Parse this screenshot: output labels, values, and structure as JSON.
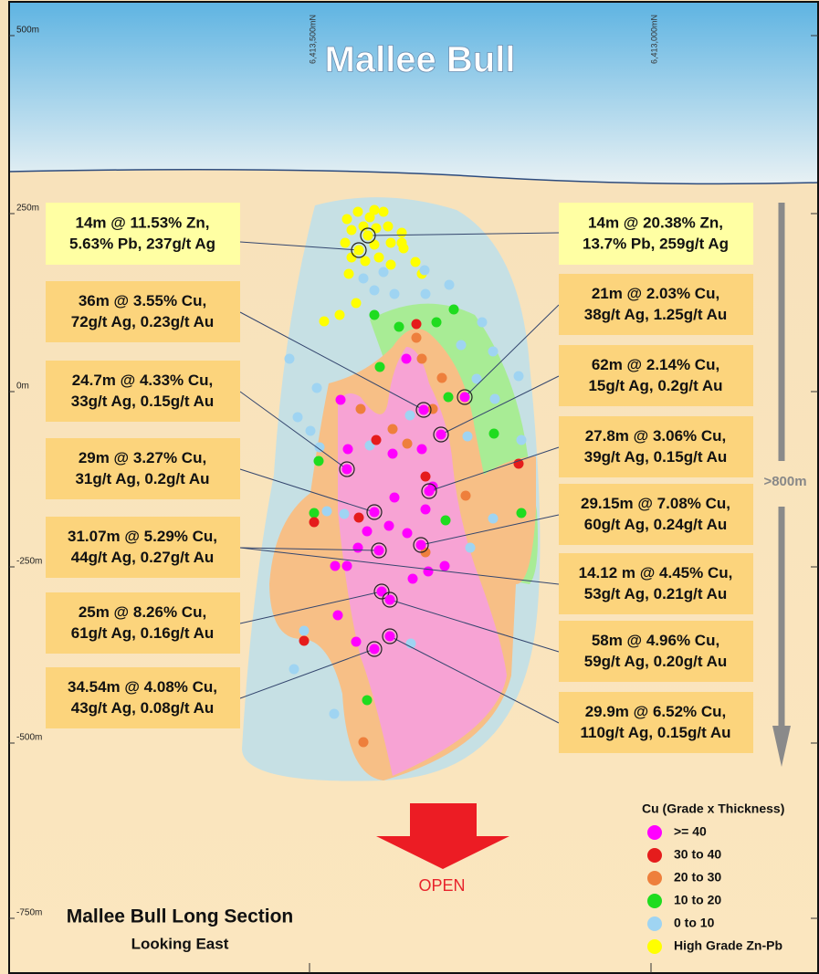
{
  "title": "Mallee Bull",
  "elevations": [
    "500m",
    "250m",
    "0m",
    "-250m",
    "-500m",
    "-750m"
  ],
  "northings": [
    "6,413,500mN",
    "6,413,000mN"
  ],
  "zn_intercepts": {
    "left": [
      "14m @ 11.53% Zn,",
      "5.63% Pb, 237g/t Ag"
    ],
    "right": [
      "14m @ 20.38% Zn,",
      "13.7% Pb, 259g/t Ag"
    ]
  },
  "cu_intercepts_left": [
    [
      "36m @ 3.55% Cu,",
      "72g/t Ag, 0.23g/t Au"
    ],
    [
      "24.7m @ 4.33% Cu,",
      "33g/t Ag, 0.15g/t Au"
    ],
    [
      "29m @ 3.27% Cu,",
      "31g/t Ag, 0.2g/t Au"
    ],
    [
      "31.07m @ 5.29% Cu,",
      "44g/t Ag, 0.27g/t Au"
    ],
    [
      "25m @ 8.26% Cu,",
      "61g/t Ag, 0.16g/t Au"
    ],
    [
      "34.54m @ 4.08% Cu,",
      "43g/t Ag, 0.08g/t Au"
    ]
  ],
  "cu_intercepts_right": [
    [
      "21m @ 2.03% Cu,",
      "38g/t Ag, 1.25g/t Au"
    ],
    [
      "62m @ 2.14% Cu,",
      "15g/t Ag, 0.2g/t Au"
    ],
    [
      "27.8m @ 3.06% Cu,",
      "39g/t Ag, 0.15g/t Au"
    ],
    [
      "29.15m @ 7.08% Cu,",
      "60g/t Ag, 0.24g/t Au"
    ],
    [
      "14.12 m @ 4.45% Cu,",
      "53g/t Ag, 0.21g/t Au"
    ],
    [
      "58m @ 4.96% Cu,",
      "59g/t Ag, 0.20g/t Au"
    ],
    [
      "29.9m @ 6.52% Cu,",
      "110g/t Ag, 0.15g/t Au"
    ]
  ],
  "depth_label": ">800m",
  "open_label": "OPEN",
  "footer": {
    "title": "Mallee Bull Long Section",
    "subtitle": "Looking East"
  },
  "legend": {
    "title": "Cu (Grade x Thickness)",
    "items": [
      {
        "label": ">= 40",
        "color": "#ff00ff"
      },
      {
        "label": "30 to 40",
        "color": "#e51c1c"
      },
      {
        "label": "20 to 30",
        "color": "#ee7f3c"
      },
      {
        "label": "10 to 20",
        "color": "#1fdc1f"
      },
      {
        "label": "0 to 10",
        "color": "#9fd4f2"
      },
      {
        "label": "High Grade Zn-Pb",
        "color": "#ffff00"
      }
    ]
  }
}
